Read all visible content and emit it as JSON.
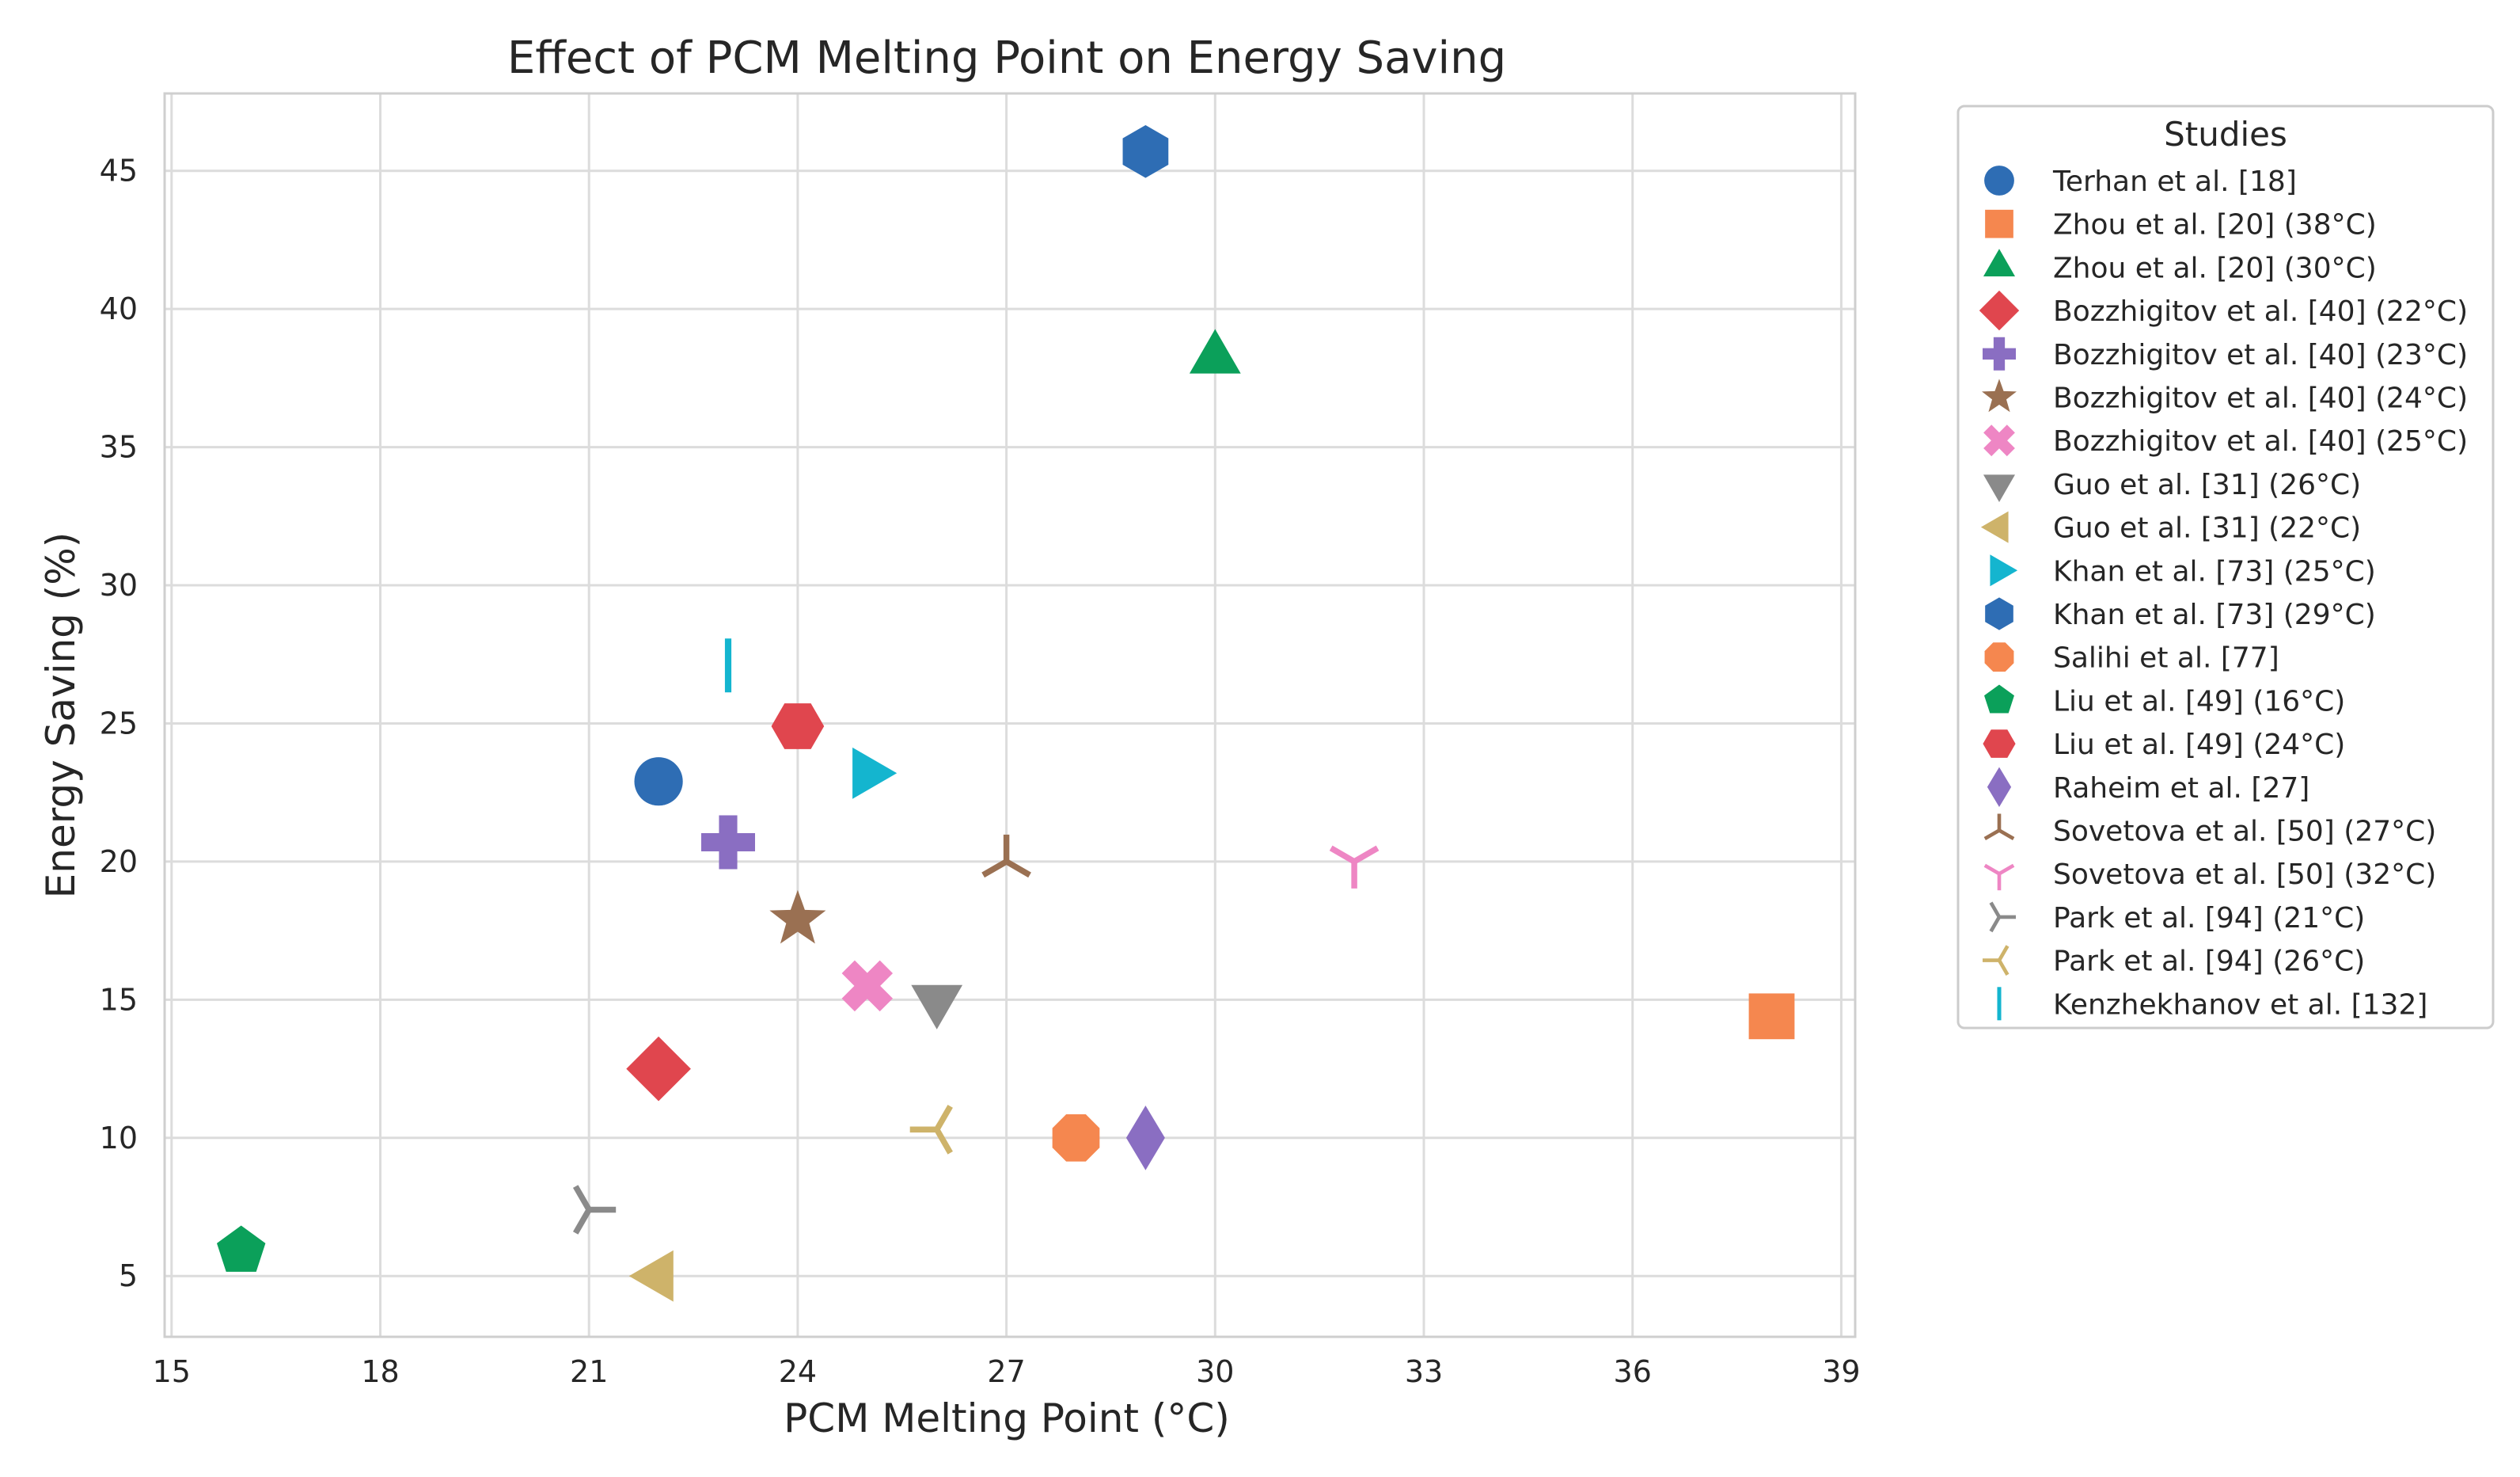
{
  "chart_data": {
    "type": "scatter",
    "title": "Effect of PCM Melting Point on Energy Saving",
    "xlabel": "PCM Melting Point (°C)",
    "ylabel": "Energy Saving (%)",
    "xlim": [
      14.9,
      39.2
    ],
    "ylim": [
      2.8,
      47.8
    ],
    "xticks": [
      15,
      18,
      21,
      24,
      27,
      30,
      33,
      36,
      39
    ],
    "yticks": [
      5,
      10,
      15,
      20,
      25,
      30,
      35,
      40,
      45
    ],
    "grid": true,
    "legend_title": "Studies",
    "legend_position": "outside-right",
    "series": [
      {
        "name": "Terhan et al. [18]",
        "marker": "circle",
        "color": "#2e6db4",
        "x": 22,
        "y": 22.9
      },
      {
        "name": "Zhou et al. [20] (38°C)",
        "marker": "square",
        "color": "#f5874f",
        "x": 38,
        "y": 14.4
      },
      {
        "name": "Zhou et al. [20] (30°C)",
        "marker": "triangle-up",
        "color": "#0ba05a",
        "x": 30,
        "y": 38.2
      },
      {
        "name": "Bozzhigitov et al. [40] (22°C)",
        "marker": "diamond",
        "color": "#e0464e",
        "x": 22,
        "y": 12.5
      },
      {
        "name": "Bozzhigitov et al. [40] (23°C)",
        "marker": "plus",
        "color": "#8a6ec2",
        "x": 23,
        "y": 20.7
      },
      {
        "name": "Bozzhigitov et al. [40] (24°C)",
        "marker": "star",
        "color": "#9a7052",
        "x": 24,
        "y": 17.9
      },
      {
        "name": "Bozzhigitov et al. [40] (25°C)",
        "marker": "x",
        "color": "#ee86c4",
        "x": 25,
        "y": 15.5
      },
      {
        "name": "Guo et al. [31] (26°C)",
        "marker": "triangle-down",
        "color": "#8a8a8a",
        "x": 26,
        "y": 15
      },
      {
        "name": "Guo et al. [31] (22°C)",
        "marker": "triangle-left",
        "color": "#ceb36a",
        "x": 22,
        "y": 5
      },
      {
        "name": "Khan et al. [73] (25°C)",
        "marker": "triangle-right",
        "color": "#14b5cf",
        "x": 25,
        "y": 23.2
      },
      {
        "name": "Khan et al. [73] (29°C)",
        "marker": "hexagon",
        "color": "#2e6db4",
        "x": 29,
        "y": 45.7
      },
      {
        "name": "Salihi et al. [77]",
        "marker": "octagon",
        "color": "#f5874f",
        "x": 28,
        "y": 10
      },
      {
        "name": "Liu et al. [49] (16°C)",
        "marker": "pentagon",
        "color": "#0ba05a",
        "x": 16,
        "y": 5.9
      },
      {
        "name": "Liu et al. [49] (24°C)",
        "marker": "hexagon2",
        "color": "#e0464e",
        "x": 24,
        "y": 24.9
      },
      {
        "name": "Raheim et al. [27]",
        "marker": "thin-diamond",
        "color": "#8a6ec2",
        "x": 29,
        "y": 10
      },
      {
        "name": "Sovetova et al. [50] (27°C)",
        "marker": "tri-down",
        "color": "#9a7052",
        "x": 27,
        "y": 20
      },
      {
        "name": "Sovetova et al. [50] (32°C)",
        "marker": "tri-up",
        "color": "#ee86c4",
        "x": 32,
        "y": 20
      },
      {
        "name": "Park et al. [94] (21°C)",
        "marker": "tri-left",
        "color": "#8a8a8a",
        "x": 21,
        "y": 7.4
      },
      {
        "name": "Park et al. [94] (26°C)",
        "marker": "tri-right",
        "color": "#ceb36a",
        "x": 26,
        "y": 10.3
      },
      {
        "name": "Kenzhekhanov et al. [132]",
        "marker": "vline",
        "color": "#14b5cf",
        "x": 23,
        "y": 27.1
      }
    ]
  },
  "colors": {
    "background": "#ffffff",
    "grid": "#dcdcdc",
    "axes_edge": "#cfcfcf",
    "legend_edge": "#cccccc"
  }
}
